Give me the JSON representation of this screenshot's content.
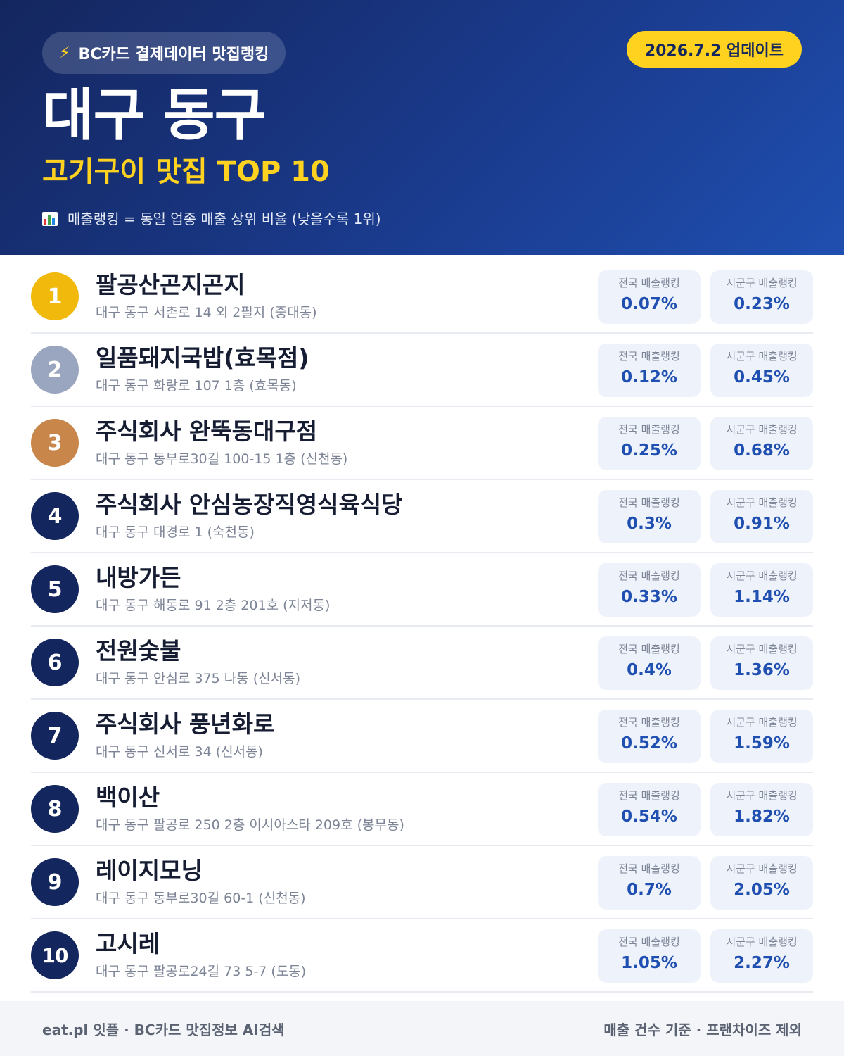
{
  "header": {
    "brand_icon": "bolt-icon",
    "brand_label": "BC카드 결제데이터 맛집랭킹",
    "update_label": "2026.7.2 업데이트",
    "region": "대구 동구",
    "subtitle": "고기구이 맛집 TOP 10",
    "legend_icon": "bar-chart-icon",
    "legend_text": "매출랭킹 = 동일 업종 매출 상위 비율 (낮을수록 1위)"
  },
  "colors": {
    "gold": "#f0b90b",
    "silver": "#9aa6bf",
    "bronze": "#c8864a",
    "navy": "#14265e",
    "accent_yellow": "#ffd21f",
    "value_blue": "#1f4fb0"
  },
  "labels": {
    "national": "전국 매출랭킹",
    "district": "시군구 매출랭킹"
  },
  "restaurants": [
    {
      "rank": "1",
      "name": "팔공산곤지곤지",
      "address": "대구 동구 서촌로 14 외 2필지 (중대동)",
      "national": "0.07%",
      "district": "0.23%",
      "badge_color": "#f0b90b"
    },
    {
      "rank": "2",
      "name": "일품돼지국밥(효목점)",
      "address": "대구 동구 화랑로 107 1층 (효목동)",
      "national": "0.12%",
      "district": "0.45%",
      "badge_color": "#9aa6bf"
    },
    {
      "rank": "3",
      "name": "주식회사 완뚝동대구점",
      "address": "대구 동구 동부로30길 100-15 1층 (신천동)",
      "national": "0.25%",
      "district": "0.68%",
      "badge_color": "#c8864a"
    },
    {
      "rank": "4",
      "name": "주식회사 안심농장직영식육식당",
      "address": "대구 동구 대경로 1 (숙천동)",
      "national": "0.3%",
      "district": "0.91%",
      "badge_color": "#14265e"
    },
    {
      "rank": "5",
      "name": "내방가든",
      "address": "대구 동구 해동로 91 2층 201호 (지저동)",
      "national": "0.33%",
      "district": "1.14%",
      "badge_color": "#14265e"
    },
    {
      "rank": "6",
      "name": "전원숯불",
      "address": "대구 동구 안심로 375 나동 (신서동)",
      "national": "0.4%",
      "district": "1.36%",
      "badge_color": "#14265e"
    },
    {
      "rank": "7",
      "name": "주식회사 풍년화로",
      "address": "대구 동구 신서로 34 (신서동)",
      "national": "0.52%",
      "district": "1.59%",
      "badge_color": "#14265e"
    },
    {
      "rank": "8",
      "name": "백이산",
      "address": "대구 동구 팔공로 250 2층 이시아스타 209호 (봉무동)",
      "national": "0.54%",
      "district": "1.82%",
      "badge_color": "#14265e"
    },
    {
      "rank": "9",
      "name": "레이지모닝",
      "address": "대구 동구 동부로30길 60-1 (신천동)",
      "national": "0.7%",
      "district": "2.05%",
      "badge_color": "#14265e"
    },
    {
      "rank": "10",
      "name": "고시레",
      "address": "대구 동구 팔공로24길 73 5-7 (도동)",
      "national": "1.05%",
      "district": "2.27%",
      "badge_color": "#14265e"
    }
  ],
  "footer": {
    "left": "eat.pl 잇플 · BC카드 맛집정보 AI검색",
    "right": "매출 건수 기준 · 프랜차이즈 제외"
  }
}
